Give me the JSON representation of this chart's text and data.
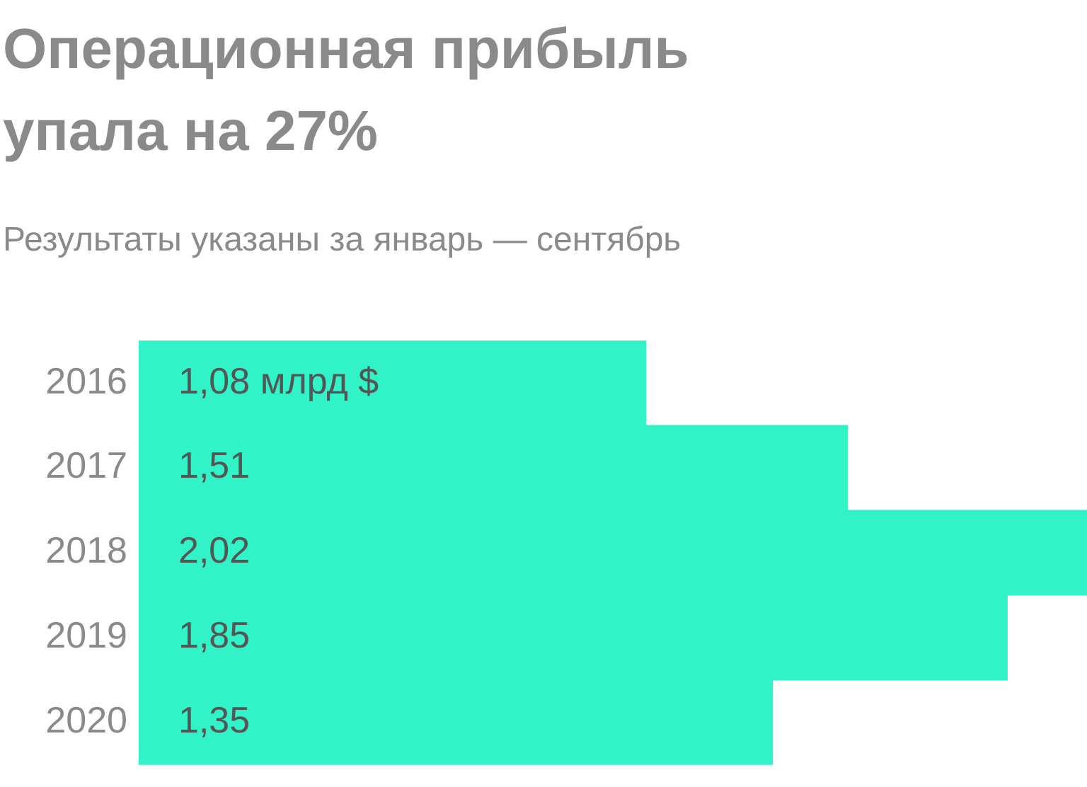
{
  "chart_data": {
    "type": "bar",
    "orientation": "horizontal",
    "title": "Операционная прибыль упала на 27%",
    "subtitle": "Результаты указаны за январь — сентябрь",
    "categories": [
      "2016",
      "2017",
      "2018",
      "2019",
      "2020"
    ],
    "values": [
      1.08,
      1.51,
      2.02,
      1.85,
      1.35
    ],
    "color": "#32f2c8",
    "value_labels": [
      "1,08 млрд $",
      "1,51",
      "2,02",
      "1,85",
      "1,35"
    ],
    "xlim": [
      0,
      2.02
    ],
    "tick_labels": "y",
    "grid": false,
    "legend": false
  }
}
